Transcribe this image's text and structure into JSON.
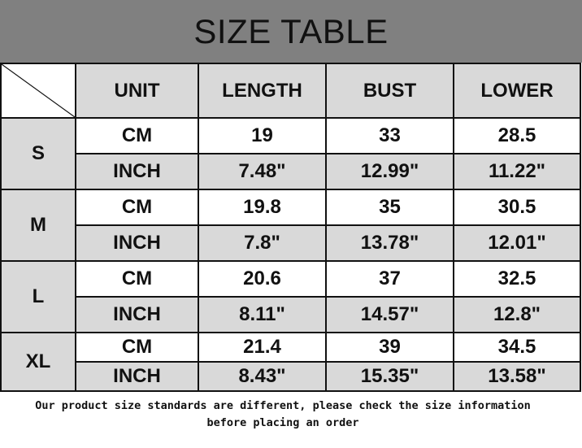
{
  "title": "SIZE TABLE",
  "headers": [
    "UNIT",
    "LENGTH",
    "BUST",
    "LOWER"
  ],
  "sizes": [
    {
      "size": "S",
      "rows": [
        [
          "CM",
          "19",
          "33",
          "28.5"
        ],
        [
          "INCH",
          "7.48\"",
          "12.99\"",
          "11.22\""
        ]
      ]
    },
    {
      "size": "M",
      "rows": [
        [
          "CM",
          "19.8",
          "35",
          "30.5"
        ],
        [
          "INCH",
          "7.8\"",
          "13.78\"",
          "12.01\""
        ]
      ]
    },
    {
      "size": "L",
      "rows": [
        [
          "CM",
          "20.6",
          "37",
          "32.5"
        ],
        [
          "INCH",
          "8.11\"",
          "14.57\"",
          "12.8\""
        ]
      ]
    },
    {
      "size": "XL",
      "rows": [
        [
          "CM",
          "21.4",
          "39",
          "34.5"
        ],
        [
          "INCH",
          "8.43\"",
          "15.35\"",
          "13.58\""
        ]
      ]
    }
  ],
  "note_line1": "Our product size standards are different, please check the size information",
  "note_line2": "before placing an order"
}
